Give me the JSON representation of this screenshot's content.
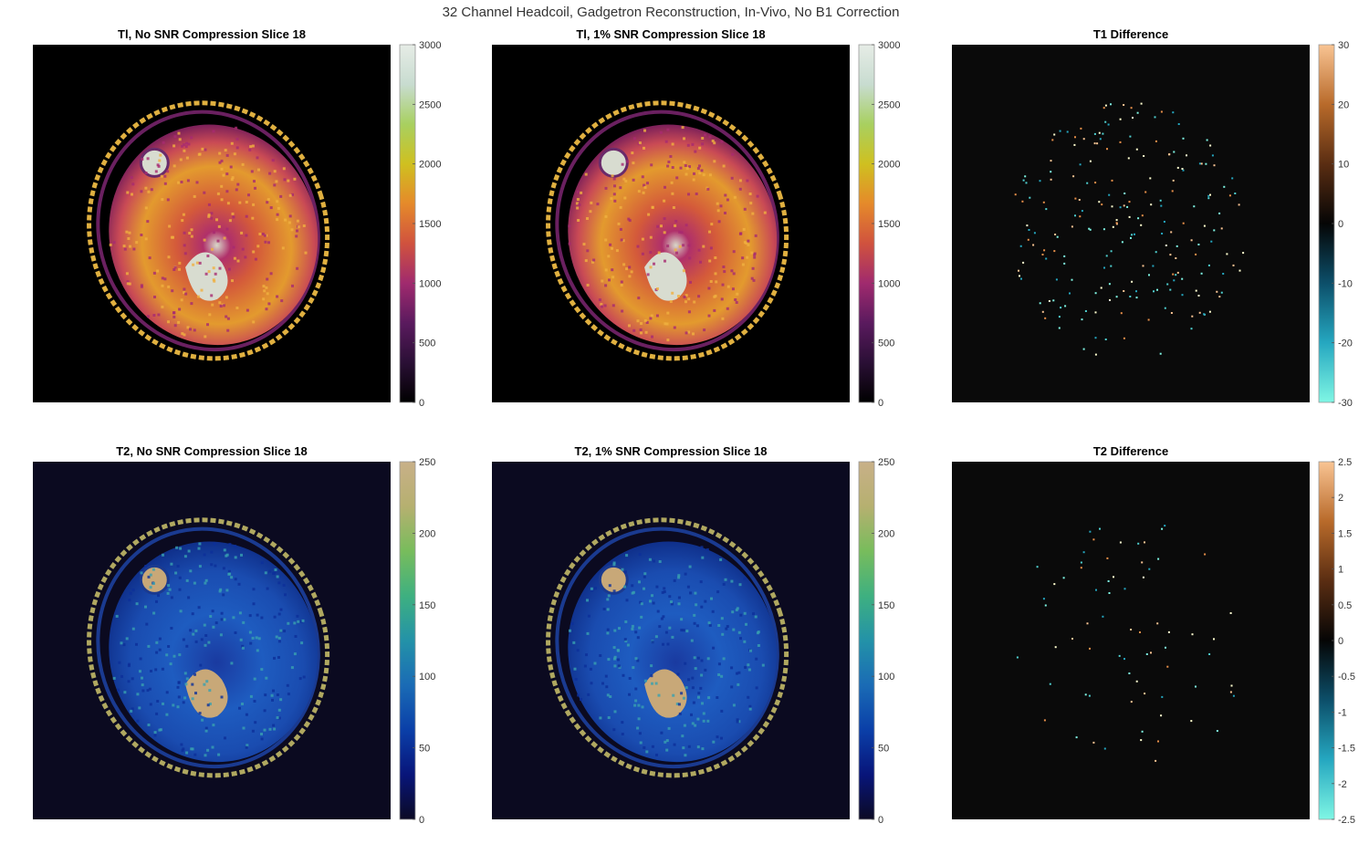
{
  "figure": {
    "suptitle": "32 Channel Headcoil, Gadgetron Reconstruction, In-Vivo, No B1 Correction"
  },
  "chart_data": [
    {
      "type": "heatmap",
      "title": "Tl, No SNR Compression Slice 18",
      "colorbar": {
        "colormap": "lipari-like (black-purple-red-orange-yellow-white)",
        "clim": [
          0,
          3000
        ],
        "ticks": [
          "0",
          "500",
          "1000",
          "1500",
          "2000",
          "2500",
          "3000"
        ]
      },
      "content": "axial brain T1 map"
    },
    {
      "type": "heatmap",
      "title": "Tl, 1% SNR Compression Slice 18",
      "colorbar": {
        "colormap": "lipari-like (black-purple-red-orange-yellow-white)",
        "clim": [
          0,
          3000
        ],
        "ticks": [
          "0",
          "500",
          "1000",
          "1500",
          "2000",
          "2500",
          "3000"
        ]
      },
      "content": "axial brain T1 map"
    },
    {
      "type": "heatmap",
      "title": "T1 Difference",
      "colorbar": {
        "colormap": "diverging (cyan-black-orange)",
        "clim": [
          -30,
          30
        ],
        "ticks": [
          "-30",
          "-20",
          "-10",
          "0",
          "10",
          "20",
          "30"
        ]
      },
      "content": "sparse difference map"
    },
    {
      "type": "heatmap",
      "title": "T2, No SNR Compression Slice 18",
      "colorbar": {
        "colormap": "navia-like (navy-blue-teal-green-tan)",
        "clim": [
          0,
          250
        ],
        "ticks": [
          "0",
          "50",
          "100",
          "150",
          "200",
          "250"
        ]
      },
      "content": "axial brain T2 map"
    },
    {
      "type": "heatmap",
      "title": "T2, 1% SNR Compression Slice 18",
      "colorbar": {
        "colormap": "navia-like (navy-blue-teal-green-tan)",
        "clim": [
          0,
          250
        ],
        "ticks": [
          "0",
          "50",
          "100",
          "150",
          "200",
          "250"
        ]
      },
      "content": "axial brain T2 map"
    },
    {
      "type": "heatmap",
      "title": "T2 Difference",
      "colorbar": {
        "colormap": "diverging (cyan-black-orange)",
        "clim": [
          -2.5,
          2.5
        ],
        "ticks": [
          "-2.5",
          "-2",
          "-1.5",
          "-1",
          "-0.5",
          "0",
          "0.5",
          "1",
          "1.5",
          "2",
          "2.5"
        ]
      },
      "content": "sparse difference map"
    }
  ],
  "colors": {
    "t1_map": [
      "#000000",
      "#2a0f35",
      "#5a1a5e",
      "#a02a6e",
      "#d0523e",
      "#e58a2a",
      "#cfc020",
      "#a8d060",
      "#c8dcd0",
      "#e6ece6"
    ],
    "t2_map": [
      "#0b0a24",
      "#08157a",
      "#0a3fa8",
      "#1a6bb5",
      "#2392a8",
      "#3eb080",
      "#78bc5c",
      "#b6b070",
      "#c8b088"
    ],
    "diff_map": [
      "#7ff6e4",
      "#25a7c0",
      "#0c4f6a",
      "#050505",
      "#5a2d12",
      "#b86a2a",
      "#f9c493"
    ],
    "t1_diff_background": "#0a0a0a",
    "t2_background": "#0b0a20"
  }
}
